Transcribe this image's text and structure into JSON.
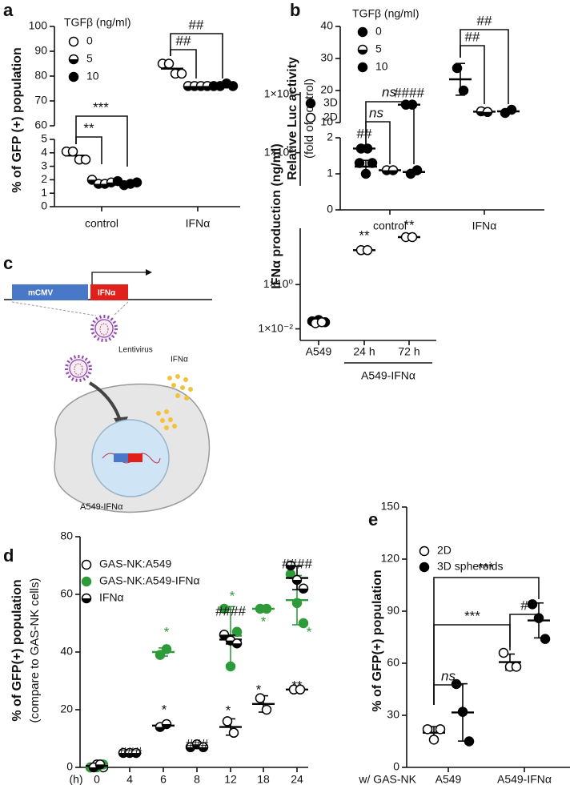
{
  "chart_data": [
    {
      "type": "dot",
      "panel": "a",
      "ylabel": [
        "% of GFP (+) population"
      ],
      "legend_title": "TGFβ (ng/ml)",
      "categories": [
        "control",
        "IFNα"
      ],
      "y_segments": [
        {
          "ylim": [
            0,
            5
          ],
          "yticks": [
            0,
            1,
            2,
            3,
            4,
            5
          ]
        },
        {
          "ylim": [
            60,
            100
          ],
          "yticks": [
            60,
            70,
            80,
            90,
            100
          ]
        }
      ],
      "series": [
        {
          "name": "0",
          "marker": "open",
          "color": "#000000",
          "values": [
            [
              4.1,
              4.1,
              3.5,
              3.5
            ],
            [
              85,
              85,
              81,
              81
            ]
          ]
        },
        {
          "name": "5",
          "marker": "half",
          "color": "#000000",
          "values": [
            [
              2.0,
              1.7,
              1.7,
              1.8
            ],
            [
              76,
              76,
              76,
              76
            ]
          ]
        },
        {
          "name": "10",
          "marker": "filled",
          "color": "#000000",
          "values": [
            [
              1.9,
              1.6,
              1.7,
              1.8
            ],
            [
              76,
              76,
              77,
              76
            ]
          ]
        }
      ],
      "error_bars": false,
      "annotations": [
        {
          "text": "**"
        },
        {
          "text": "***"
        },
        {
          "text": "##"
        },
        {
          "text": "##"
        }
      ]
    },
    {
      "type": "dot",
      "panel": "b",
      "ylabel": [
        "Relative Luc activity",
        "(fold of control)"
      ],
      "legend_title": "TGFβ (ng/ml)",
      "categories": [
        "control",
        "IFNα"
      ],
      "y_segments": [
        {
          "ylim": [
            0,
            2
          ],
          "yticks": [
            0,
            1,
            2
          ]
        },
        {
          "ylim": [
            10,
            40
          ],
          "yticks": [
            10,
            20,
            30,
            40
          ]
        }
      ],
      "series": [
        {
          "name": "0",
          "marker": "filled",
          "color": "#000000",
          "values": [
            [
              1.3,
              1.0,
              1.3
            ],
            [
              27,
              20
            ]
          ]
        },
        {
          "name": "5",
          "marker": "half",
          "color": "#000000",
          "values": [
            [
              1.1,
              1.1
            ],
            [
              13.5,
              13.3
            ]
          ]
        },
        {
          "name": "10",
          "marker": "filled",
          "color": "#000000",
          "values": [
            [
              1.0,
              1.1
            ],
            [
              13,
              14
            ]
          ]
        }
      ],
      "error_bars": true,
      "annotations": [
        {
          "text": "ns",
          "style": "italic"
        },
        {
          "text": "ns",
          "style": "italic"
        },
        {
          "text": "##"
        },
        {
          "text": "##"
        }
      ]
    },
    {
      "type": "dot",
      "panel": "c",
      "ylabel": [
        "IFNα production (ng/ml)"
      ],
      "log_scale": true,
      "categories": [
        "A549",
        "24 h",
        "72 h"
      ],
      "group_label": "A549-IFNα",
      "y_segments": [
        {
          "ylim": [
            0.003,
            350
          ],
          "yticks": [
            {
              "value": 0.01,
              "label": "1×10⁻²"
            },
            {
              "value": 1,
              "label": "1×10⁰"
            }
          ]
        },
        {
          "ylim": [
            27,
            1100
          ],
          "yticks": [
            {
              "value": 100,
              "label": "1×10²"
            },
            {
              "value": 1000,
              "label": "1×10³"
            }
          ]
        }
      ],
      "series": [
        {
          "name": "3D",
          "marker": "filled",
          "color": "#000000",
          "segment": [
            0,
            1,
            1
          ],
          "values": [
            [
              0.022,
              0.025,
              0.02
            ],
            [
              118,
              118
            ],
            [
              670,
              670
            ]
          ]
        },
        {
          "name": "2D",
          "marker": "open",
          "color": "#000000",
          "segment": [
            0,
            0,
            0
          ],
          "values": [
            [
              0.018,
              0.02
            ],
            [
              36,
              36
            ],
            [
              140,
              140
            ]
          ]
        }
      ],
      "error_bars": false,
      "annotations": [
        {
          "text": "##"
        },
        {
          "text": "####"
        },
        {
          "text": "**"
        },
        {
          "text": "**"
        }
      ]
    },
    {
      "type": "dot",
      "panel": "d",
      "ylabel": [
        "% of GFP(+) population",
        "(compare to GAS-NK cells)"
      ],
      "xlabel": "(h)",
      "categories": [
        "0",
        "4",
        "6",
        "8",
        "12",
        "18",
        "24"
      ],
      "ylim": [
        0,
        80
      ],
      "yticks": [
        0,
        20,
        40,
        60,
        80
      ],
      "series": [
        {
          "name": "GAS-NK:A549",
          "marker": "open",
          "color": "#000000",
          "values": [
            [
              0,
              1,
              0
            ],
            null,
            null,
            null,
            [
              16,
              12
            ],
            [
              24,
              20
            ],
            [
              27,
              27
            ]
          ]
        },
        {
          "name": "GAS-NK:A549-IFNα",
          "marker": "filled",
          "color": "#2e9a3a",
          "values": [
            [
              0,
              0,
              1
            ],
            null,
            [
              39,
              41
            ],
            null,
            [
              55,
              35,
              47
            ],
            [
              55,
              55
            ],
            [
              67,
              57,
              50
            ]
          ]
        },
        {
          "name": "IFNα",
          "marker": "half",
          "color": "#000000",
          "values": [
            [
              0,
              1
            ],
            [
              5,
              5,
              5
            ],
            [
              14,
              15
            ],
            [
              7,
              8,
              7
            ],
            [
              46,
              44,
              43
            ],
            null,
            [
              70,
              65,
              62
            ]
          ]
        }
      ],
      "error_bars": true,
      "annotations": [
        {
          "text": "###"
        },
        {
          "text": "*",
          "color": "#2e9a3a"
        },
        {
          "text": "*"
        },
        {
          "text": "###"
        },
        {
          "text": "*",
          "color": "#2e9a3a"
        },
        {
          "text": "####"
        },
        {
          "text": "*"
        },
        {
          "text": "*",
          "color": "#2e9a3a"
        },
        {
          "text": "*"
        },
        {
          "text": "####"
        },
        {
          "text": "*",
          "color": "#2e9a3a"
        },
        {
          "text": "**"
        }
      ]
    },
    {
      "type": "dot",
      "panel": "e",
      "ylabel": [
        "% of GFP(+) population"
      ],
      "xlabel": "w/ GAS-NK",
      "categories": [
        "A549",
        "A549-IFNα"
      ],
      "ylim": [
        0,
        150
      ],
      "yticks": [
        0,
        30,
        60,
        90,
        120,
        150
      ],
      "series": [
        {
          "name": "2D",
          "marker": "open",
          "color": "#000000",
          "values": [
            [
              22,
              16,
              22
            ],
            [
              66,
              58,
              58
            ]
          ]
        },
        {
          "name": "3D spheroids",
          "marker": "filled",
          "color": "#000000",
          "values": [
            [
              48,
              32,
              15
            ],
            [
              94,
              86,
              74
            ]
          ]
        }
      ],
      "error_bars": true,
      "annotations": [
        {
          "text": "ns",
          "style": "italic"
        },
        {
          "text": "***"
        },
        {
          "text": "***"
        },
        {
          "text": "#"
        }
      ]
    }
  ],
  "diagram": {
    "promoter": "mCMV",
    "gene": "IFNα",
    "vector": "Lentivirus",
    "secreted": "IFNα",
    "cell": "A549-IFNα"
  }
}
